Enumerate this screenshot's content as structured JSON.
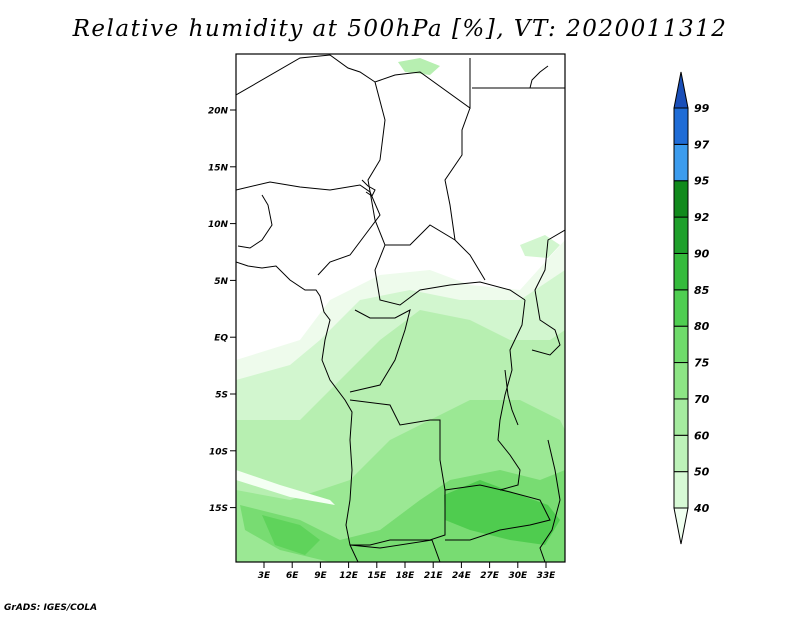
{
  "title": "Relative humidity at 500hPa [%], VT: 2020011312",
  "credit": "GrADS: IGES/COLA",
  "map": {
    "lat_labels": [
      "20N",
      "15N",
      "10N",
      "5N",
      "EQ",
      "5S",
      "10S",
      "15S"
    ],
    "lon_labels": [
      "3E",
      "6E",
      "9E",
      "12E",
      "15E",
      "18E",
      "21E",
      "24E",
      "27E",
      "30E",
      "33E"
    ],
    "border_color": "#000000",
    "field_description_colors": [
      "#f0fff0",
      "#c8fac8",
      "#a0f0a0",
      "#78e678",
      "#50d250"
    ]
  },
  "colorbar": {
    "labels": [
      "40",
      "50",
      "60",
      "70",
      "75",
      "80",
      "85",
      "90",
      "92",
      "95",
      "97",
      "99"
    ],
    "colors": [
      "#f0fff0",
      "#d7f9d5",
      "#bdf2b9",
      "#a5eb9f",
      "#8de585",
      "#6fdb6b",
      "#4fce51",
      "#35bb3c",
      "#1ea02b",
      "#118a1c",
      "#3c9cee",
      "#1f6cd6",
      "#1a4fb8"
    ]
  }
}
